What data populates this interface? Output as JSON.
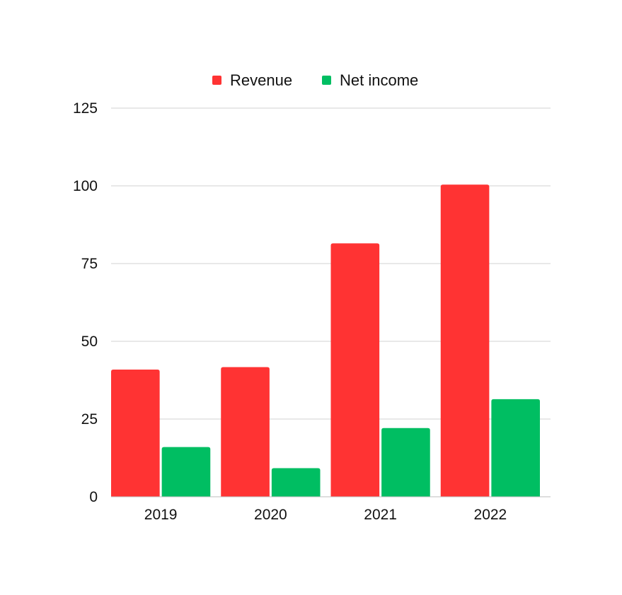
{
  "chart_data": {
    "type": "bar",
    "title": "",
    "xlabel": "",
    "ylabel": "",
    "categories": [
      "2019",
      "2020",
      "2021",
      "2022"
    ],
    "series": [
      {
        "name": "Revenue",
        "values": [
          40.9,
          41.7,
          81.5,
          100.4
        ],
        "color": "#ff3333"
      },
      {
        "name": "Net income",
        "values": [
          16.0,
          9.2,
          22.1,
          31.4
        ],
        "color": "#00be62"
      }
    ],
    "ylim": [
      0,
      125
    ],
    "yticks": [
      0,
      25,
      50,
      75,
      100,
      125
    ],
    "grid": true,
    "legend_position": "top-center"
  }
}
